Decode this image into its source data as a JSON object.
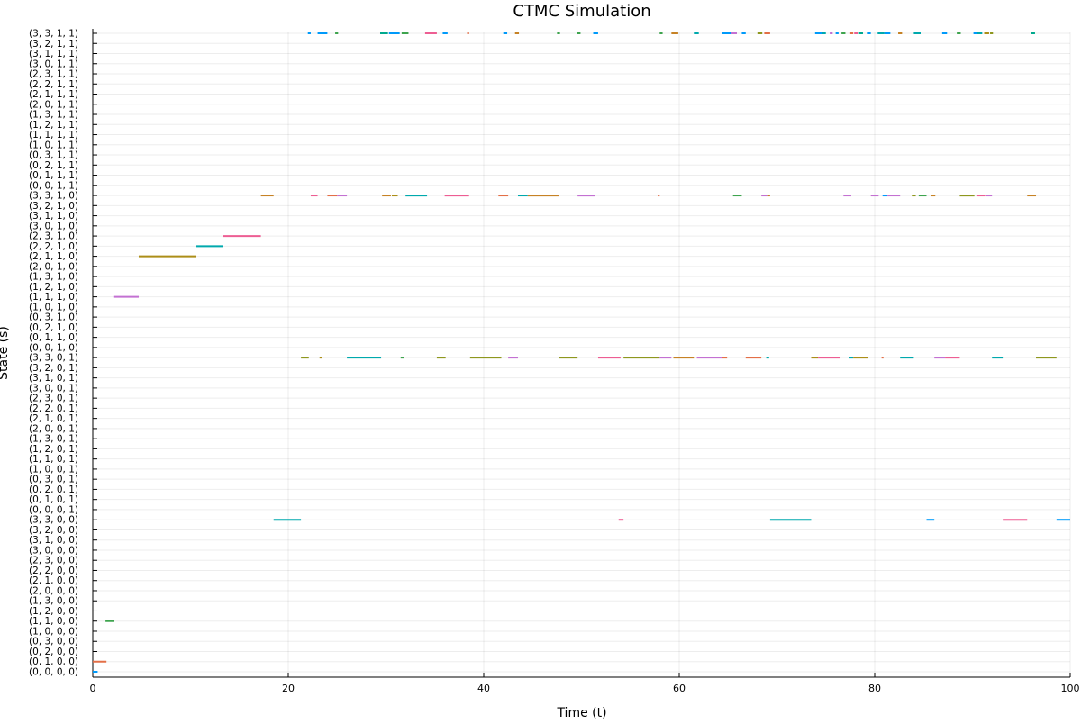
{
  "chart_data": {
    "type": "scatter",
    "title": "CTMC Simulation",
    "xlabel": "Time (t)",
    "ylabel": "State (s)",
    "xlim": [
      0,
      100
    ],
    "xticks": [
      "0",
      "20",
      "40",
      "60",
      "80",
      "100"
    ],
    "grid": true,
    "legend": "none",
    "y_categories": [
      "(0, 0, 0, 0)",
      "(0, 1, 0, 0)",
      "(0, 2, 0, 0)",
      "(0, 3, 0, 0)",
      "(1, 0, 0, 0)",
      "(1, 1, 0, 0)",
      "(1, 2, 0, 0)",
      "(1, 3, 0, 0)",
      "(2, 0, 0, 0)",
      "(2, 1, 0, 0)",
      "(2, 2, 0, 0)",
      "(2, 3, 0, 0)",
      "(3, 0, 0, 0)",
      "(3, 1, 0, 0)",
      "(3, 2, 0, 0)",
      "(3, 3, 0, 0)",
      "(0, 0, 0, 1)",
      "(0, 1, 0, 1)",
      "(0, 2, 0, 1)",
      "(0, 3, 0, 1)",
      "(1, 0, 0, 1)",
      "(1, 1, 0, 1)",
      "(1, 2, 0, 1)",
      "(1, 3, 0, 1)",
      "(2, 0, 0, 1)",
      "(2, 1, 0, 1)",
      "(2, 2, 0, 1)",
      "(2, 3, 0, 1)",
      "(3, 0, 0, 1)",
      "(3, 1, 0, 1)",
      "(3, 2, 0, 1)",
      "(3, 3, 0, 1)",
      "(0, 0, 1, 0)",
      "(0, 1, 1, 0)",
      "(0, 2, 1, 0)",
      "(0, 3, 1, 0)",
      "(1, 0, 1, 0)",
      "(1, 1, 1, 0)",
      "(1, 2, 1, 0)",
      "(1, 3, 1, 0)",
      "(2, 0, 1, 0)",
      "(2, 1, 1, 0)",
      "(2, 2, 1, 0)",
      "(2, 3, 1, 0)",
      "(3, 0, 1, 0)",
      "(3, 1, 1, 0)",
      "(3, 2, 1, 0)",
      "(3, 3, 1, 0)",
      "(0, 0, 1, 1)",
      "(0, 1, 1, 1)",
      "(0, 2, 1, 1)",
      "(0, 3, 1, 1)",
      "(1, 0, 1, 1)",
      "(1, 1, 1, 1)",
      "(1, 2, 1, 1)",
      "(1, 3, 1, 1)",
      "(2, 0, 1, 1)",
      "(2, 1, 1, 1)",
      "(2, 2, 1, 1)",
      "(2, 3, 1, 1)",
      "(3, 0, 1, 1)",
      "(3, 1, 1, 1)",
      "(3, 2, 1, 1)",
      "(3, 3, 1, 1)"
    ],
    "colors": [
      "#009AFA",
      "#E36F47",
      "#3EA44E",
      "#C371D2",
      "#AC8E18",
      "#00A9AD",
      "#ED5E93",
      "#C68225",
      "#00A98D",
      "#8E971E"
    ],
    "segments": [
      {
        "state": "(0, 0, 0, 0)",
        "t0": 0.0,
        "t1": 0.5,
        "c": 0
      },
      {
        "state": "(0, 1, 0, 0)",
        "t0": 0.0,
        "t1": 1.4,
        "c": 1
      },
      {
        "state": "(1, 1, 0, 0)",
        "t0": 1.3,
        "t1": 2.2,
        "c": 2
      },
      {
        "state": "(1, 1, 1, 0)",
        "t0": 2.1,
        "t1": 4.7,
        "c": 3
      },
      {
        "state": "(2, 1, 1, 0)",
        "t0": 4.7,
        "t1": 10.6,
        "c": 4
      },
      {
        "state": "(2, 2, 1, 0)",
        "t0": 10.6,
        "t1": 13.3,
        "c": 5
      },
      {
        "state": "(2, 3, 1, 0)",
        "t0": 13.3,
        "t1": 17.2,
        "c": 6
      },
      {
        "state": "(3, 3, 1, 0)",
        "t0": 17.2,
        "t1": 18.5,
        "c": 7
      },
      {
        "state": "(3, 3, 0, 0)",
        "t0": 18.5,
        "t1": 21.3,
        "c": 5
      },
      {
        "state": "(3, 3, 0, 1)",
        "t0": 21.3,
        "t1": 22.1,
        "c": 9
      },
      {
        "state": "(3, 3, 1, 1)",
        "t0": 22.0,
        "t1": 22.3,
        "c": 0
      },
      {
        "state": "(3, 3, 1, 0)",
        "t0": 22.3,
        "t1": 23.0,
        "c": 6
      },
      {
        "state": "(3, 3, 1, 1)",
        "t0": 23.0,
        "t1": 24.0,
        "c": 0
      },
      {
        "state": "(3, 3, 0, 1)",
        "t0": 23.2,
        "t1": 23.5,
        "c": 4
      },
      {
        "state": "(3, 3, 1, 0)",
        "t0": 24.0,
        "t1": 25.0,
        "c": 1
      },
      {
        "state": "(3, 3, 1, 0)",
        "t0": 25.0,
        "t1": 26.0,
        "c": 3
      },
      {
        "state": "(3, 3, 1, 1)",
        "t0": 24.8,
        "t1": 25.1,
        "c": 2
      },
      {
        "state": "(3, 3, 0, 1)",
        "t0": 26.0,
        "t1": 29.5,
        "c": 5
      },
      {
        "state": "(3, 3, 1, 1)",
        "t0": 29.4,
        "t1": 30.2,
        "c": 8
      },
      {
        "state": "(3, 3, 1, 0)",
        "t0": 29.6,
        "t1": 30.5,
        "c": 7
      },
      {
        "state": "(3, 3, 1, 1)",
        "t0": 30.3,
        "t1": 31.4,
        "c": 0
      },
      {
        "state": "(3, 3, 1, 0)",
        "t0": 30.6,
        "t1": 31.2,
        "c": 4
      },
      {
        "state": "(3, 3, 0, 1)",
        "t0": 31.5,
        "t1": 31.8,
        "c": 2
      },
      {
        "state": "(3, 3, 1, 1)",
        "t0": 31.6,
        "t1": 32.3,
        "c": 2
      },
      {
        "state": "(3, 3, 1, 0)",
        "t0": 32.0,
        "t1": 34.2,
        "c": 5
      },
      {
        "state": "(3, 3, 1, 1)",
        "t0": 34.0,
        "t1": 35.2,
        "c": 6
      },
      {
        "state": "(3, 3, 0, 1)",
        "t0": 35.2,
        "t1": 36.1,
        "c": 9
      },
      {
        "state": "(3, 3, 1, 1)",
        "t0": 35.8,
        "t1": 36.3,
        "c": 0
      },
      {
        "state": "(3, 3, 1, 0)",
        "t0": 36.0,
        "t1": 38.5,
        "c": 6
      },
      {
        "state": "(3, 3, 1, 1)",
        "t0": 38.3,
        "t1": 38.5,
        "c": 1
      },
      {
        "state": "(3, 3, 0, 1)",
        "t0": 38.6,
        "t1": 41.8,
        "c": 9
      },
      {
        "state": "(3, 3, 1, 0)",
        "t0": 41.5,
        "t1": 42.5,
        "c": 1
      },
      {
        "state": "(3, 3, 1, 1)",
        "t0": 42.0,
        "t1": 42.4,
        "c": 0
      },
      {
        "state": "(3, 3, 0, 1)",
        "t0": 42.5,
        "t1": 43.5,
        "c": 3
      },
      {
        "state": "(3, 3, 1, 1)",
        "t0": 43.2,
        "t1": 43.6,
        "c": 7
      },
      {
        "state": "(3, 3, 1, 0)",
        "t0": 43.5,
        "t1": 44.5,
        "c": 5
      },
      {
        "state": "(3, 3, 1, 0)",
        "t0": 44.5,
        "t1": 47.7,
        "c": 7
      },
      {
        "state": "(3, 3, 1, 1)",
        "t0": 47.5,
        "t1": 47.8,
        "c": 2
      },
      {
        "state": "(3, 3, 0, 1)",
        "t0": 47.7,
        "t1": 49.6,
        "c": 9
      },
      {
        "state": "(3, 3, 1, 1)",
        "t0": 49.5,
        "t1": 49.9,
        "c": 2
      },
      {
        "state": "(3, 3, 1, 0)",
        "t0": 49.6,
        "t1": 51.4,
        "c": 3
      },
      {
        "state": "(3, 3, 1, 1)",
        "t0": 51.2,
        "t1": 51.7,
        "c": 0
      },
      {
        "state": "(3, 3, 0, 1)",
        "t0": 51.7,
        "t1": 54.0,
        "c": 6
      },
      {
        "state": "(3, 3, 0, 0)",
        "t0": 53.8,
        "t1": 54.3,
        "c": 6
      },
      {
        "state": "(3, 3, 0, 1)",
        "t0": 54.3,
        "t1": 58.0,
        "c": 9
      },
      {
        "state": "(3, 3, 1, 0)",
        "t0": 57.8,
        "t1": 58.0,
        "c": 1
      },
      {
        "state": "(3, 3, 1, 1)",
        "t0": 58.0,
        "t1": 58.3,
        "c": 2
      },
      {
        "state": "(3, 3, 0, 1)",
        "t0": 58.0,
        "t1": 59.2,
        "c": 3
      },
      {
        "state": "(3, 3, 1, 1)",
        "t0": 59.2,
        "t1": 59.9,
        "c": 7
      },
      {
        "state": "(3, 3, 0, 1)",
        "t0": 59.4,
        "t1": 61.5,
        "c": 7
      },
      {
        "state": "(3, 3, 1, 1)",
        "t0": 61.5,
        "t1": 62.0,
        "c": 5
      },
      {
        "state": "(3, 3, 0, 1)",
        "t0": 61.8,
        "t1": 64.4,
        "c": 3
      },
      {
        "state": "(3, 3, 1, 1)",
        "t0": 64.4,
        "t1": 65.3,
        "c": 0
      },
      {
        "state": "(3, 3, 0, 1)",
        "t0": 64.4,
        "t1": 64.9,
        "c": 1
      },
      {
        "state": "(3, 3, 1, 1)",
        "t0": 65.3,
        "t1": 65.9,
        "c": 3
      },
      {
        "state": "(3, 3, 1, 0)",
        "t0": 65.5,
        "t1": 66.4,
        "c": 2
      },
      {
        "state": "(3, 3, 1, 1)",
        "t0": 66.4,
        "t1": 66.8,
        "c": 0
      },
      {
        "state": "(3, 3, 0, 1)",
        "t0": 66.8,
        "t1": 68.4,
        "c": 1
      },
      {
        "state": "(3, 3, 1, 1)",
        "t0": 68.0,
        "t1": 68.5,
        "c": 9
      },
      {
        "state": "(3, 3, 1, 0)",
        "t0": 68.4,
        "t1": 69.0,
        "c": 3
      },
      {
        "state": "(3, 3, 1, 1)",
        "t0": 68.7,
        "t1": 69.3,
        "c": 1
      },
      {
        "state": "(3, 3, 1, 0)",
        "t0": 69.0,
        "t1": 69.3,
        "c": 7
      },
      {
        "state": "(3, 3, 0, 1)",
        "t0": 68.9,
        "t1": 69.2,
        "c": 5
      },
      {
        "state": "(3, 3, 0, 0)",
        "t0": 69.3,
        "t1": 73.5,
        "c": 5
      },
      {
        "state": "(3, 3, 0, 1)",
        "t0": 73.5,
        "t1": 74.2,
        "c": 4
      },
      {
        "state": "(3, 3, 1, 1)",
        "t0": 73.9,
        "t1": 74.6,
        "c": 0
      },
      {
        "state": "(3, 3, 0, 1)",
        "t0": 74.2,
        "t1": 76.5,
        "c": 6
      },
      {
        "state": "(3, 3, 1, 1)",
        "t0": 74.6,
        "t1": 75.0,
        "c": 5
      },
      {
        "state": "(3, 3, 1, 1)",
        "t0": 75.4,
        "t1": 75.7,
        "c": 3
      },
      {
        "state": "(3, 3, 1, 1)",
        "t0": 76.0,
        "t1": 76.3,
        "c": 0
      },
      {
        "state": "(3, 3, 1, 1)",
        "t0": 76.6,
        "t1": 77.0,
        "c": 2
      },
      {
        "state": "(3, 3, 1, 0)",
        "t0": 76.8,
        "t1": 77.6,
        "c": 3
      },
      {
        "state": "(3, 3, 0, 1)",
        "t0": 77.4,
        "t1": 77.8,
        "c": 5
      },
      {
        "state": "(3, 3, 1, 1)",
        "t0": 77.5,
        "t1": 77.8,
        "c": 1
      },
      {
        "state": "(3, 3, 1, 1)",
        "t0": 77.9,
        "t1": 78.3,
        "c": 6
      },
      {
        "state": "(3, 3, 0, 1)",
        "t0": 77.8,
        "t1": 79.3,
        "c": 4
      },
      {
        "state": "(3, 3, 1, 1)",
        "t0": 78.4,
        "t1": 78.8,
        "c": 8
      },
      {
        "state": "(3, 3, 1, 1)",
        "t0": 79.2,
        "t1": 79.6,
        "c": 0
      },
      {
        "state": "(3, 3, 1, 0)",
        "t0": 79.6,
        "t1": 80.4,
        "c": 3
      },
      {
        "state": "(3, 3, 1, 1)",
        "t0": 80.3,
        "t1": 81.0,
        "c": 5
      },
      {
        "state": "(3, 3, 0, 1)",
        "t0": 80.7,
        "t1": 80.9,
        "c": 1
      },
      {
        "state": "(3, 3, 1, 0)",
        "t0": 80.8,
        "t1": 81.3,
        "c": 0
      },
      {
        "state": "(3, 3, 1, 1)",
        "t0": 81.0,
        "t1": 81.6,
        "c": 0
      },
      {
        "state": "(3, 3, 1, 0)",
        "t0": 81.3,
        "t1": 82.6,
        "c": 3
      },
      {
        "state": "(3, 3, 1, 1)",
        "t0": 82.4,
        "t1": 82.8,
        "c": 7
      },
      {
        "state": "(3, 3, 0, 1)",
        "t0": 82.6,
        "t1": 84.0,
        "c": 5
      },
      {
        "state": "(3, 3, 1, 0)",
        "t0": 83.8,
        "t1": 84.2,
        "c": 9
      },
      {
        "state": "(3, 3, 1, 1)",
        "t0": 84.0,
        "t1": 84.7,
        "c": 5
      },
      {
        "state": "(3, 3, 1, 0)",
        "t0": 84.5,
        "t1": 85.3,
        "c": 2
      },
      {
        "state": "(3, 3, 0, 0)",
        "t0": 85.3,
        "t1": 86.1,
        "c": 0
      },
      {
        "state": "(3, 3, 1, 0)",
        "t0": 85.8,
        "t1": 86.2,
        "c": 7
      },
      {
        "state": "(3, 3, 0, 1)",
        "t0": 86.1,
        "t1": 87.2,
        "c": 3
      },
      {
        "state": "(3, 3, 1, 1)",
        "t0": 86.9,
        "t1": 87.4,
        "c": 0
      },
      {
        "state": "(3, 3, 0, 1)",
        "t0": 87.2,
        "t1": 88.7,
        "c": 6
      },
      {
        "state": "(3, 3, 1, 1)",
        "t0": 88.4,
        "t1": 88.8,
        "c": 2
      },
      {
        "state": "(3, 3, 1, 0)",
        "t0": 88.7,
        "t1": 90.2,
        "c": 9
      },
      {
        "state": "(3, 3, 1, 1)",
        "t0": 90.1,
        "t1": 90.5,
        "c": 0
      },
      {
        "state": "(3, 3, 1, 1)",
        "t0": 90.5,
        "t1": 91.0,
        "c": 5
      },
      {
        "state": "(3, 3, 1, 0)",
        "t0": 90.4,
        "t1": 91.3,
        "c": 6
      },
      {
        "state": "(3, 3, 1, 1)",
        "t0": 91.2,
        "t1": 91.7,
        "c": 4
      },
      {
        "state": "(3, 3, 1, 0)",
        "t0": 91.4,
        "t1": 92.0,
        "c": 3
      },
      {
        "state": "(3, 3, 1, 1)",
        "t0": 91.8,
        "t1": 92.1,
        "c": 9
      },
      {
        "state": "(3, 3, 0, 1)",
        "t0": 92.0,
        "t1": 93.1,
        "c": 5
      },
      {
        "state": "(3, 3, 0, 0)",
        "t0": 93.1,
        "t1": 95.6,
        "c": 6
      },
      {
        "state": "(3, 3, 1, 0)",
        "t0": 95.6,
        "t1": 96.5,
        "c": 7
      },
      {
        "state": "(3, 3, 1, 1)",
        "t0": 96.0,
        "t1": 96.4,
        "c": 8
      },
      {
        "state": "(3, 3, 0, 1)",
        "t0": 96.5,
        "t1": 98.6,
        "c": 9
      },
      {
        "state": "(3, 3, 0, 0)",
        "t0": 98.6,
        "t1": 100.0,
        "c": 0
      }
    ]
  }
}
